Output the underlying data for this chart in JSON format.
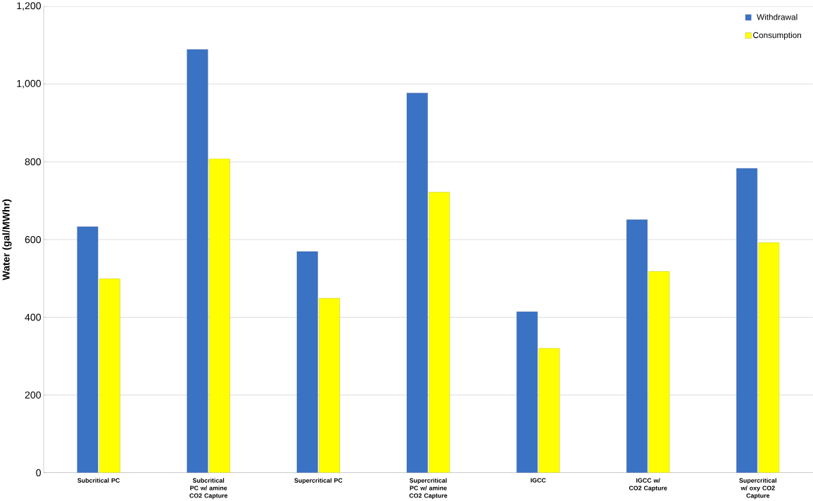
{
  "chart_data": {
    "type": "bar",
    "ylabel": "Water (gal/MWhr)",
    "categories": [
      "Subcritical PC",
      "Subcritical PC w/ amine CO2 Capture",
      "Supercritical PC",
      "Supercritical PC w/ amine CO2 Capture",
      "IGCC",
      "IGCC w/ CO2 Capture",
      "Supercritical w/ oxy CO2 Capture"
    ],
    "series": [
      {
        "name": "Withdrawal",
        "color": "#3a72c4",
        "values": [
          633,
          1089,
          569,
          977,
          414,
          651,
          783
        ]
      },
      {
        "name": "Consumption",
        "color": "#ffff00",
        "values": [
          499,
          808,
          449,
          722,
          320,
          518,
          592
        ]
      }
    ],
    "ylim": [
      0,
      1200
    ],
    "yticks": [
      0,
      200,
      400,
      600,
      800,
      {
        "value": 1000,
        "label": "1,000"
      },
      {
        "value": 1200,
        "label": "1,200"
      }
    ],
    "grid": "y",
    "legend": "top right"
  }
}
